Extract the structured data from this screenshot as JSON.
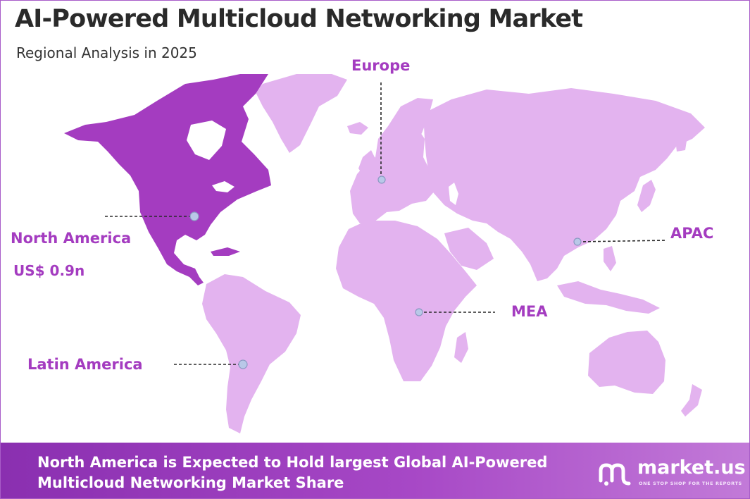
{
  "header": {
    "title": "AI-Powered Multicloud Networking Market",
    "subtitle": "Regional Analysis in 2025"
  },
  "regions": {
    "north_america": {
      "label": "North America",
      "value": "US$ 0.9n",
      "highlighted": true
    },
    "europe": {
      "label": "Europe"
    },
    "apac": {
      "label": "APAC"
    },
    "mea": {
      "label": "MEA"
    },
    "latin_america": {
      "label": "Latin America"
    }
  },
  "footer": {
    "line1": "North America is Expected to Hold largest Global AI-Powered",
    "line2": "Multicloud Networking Market Share"
  },
  "logo": {
    "name": "market.us",
    "tagline": "ONE STOP SHOP FOR THE REPORTS"
  },
  "colors": {
    "highlight_region": "#a43cc0",
    "other_regions": "#e3b3ef",
    "label_text": "#a43cc0",
    "title_text": "#2a2a2a",
    "marker": "#b9c8e8"
  }
}
